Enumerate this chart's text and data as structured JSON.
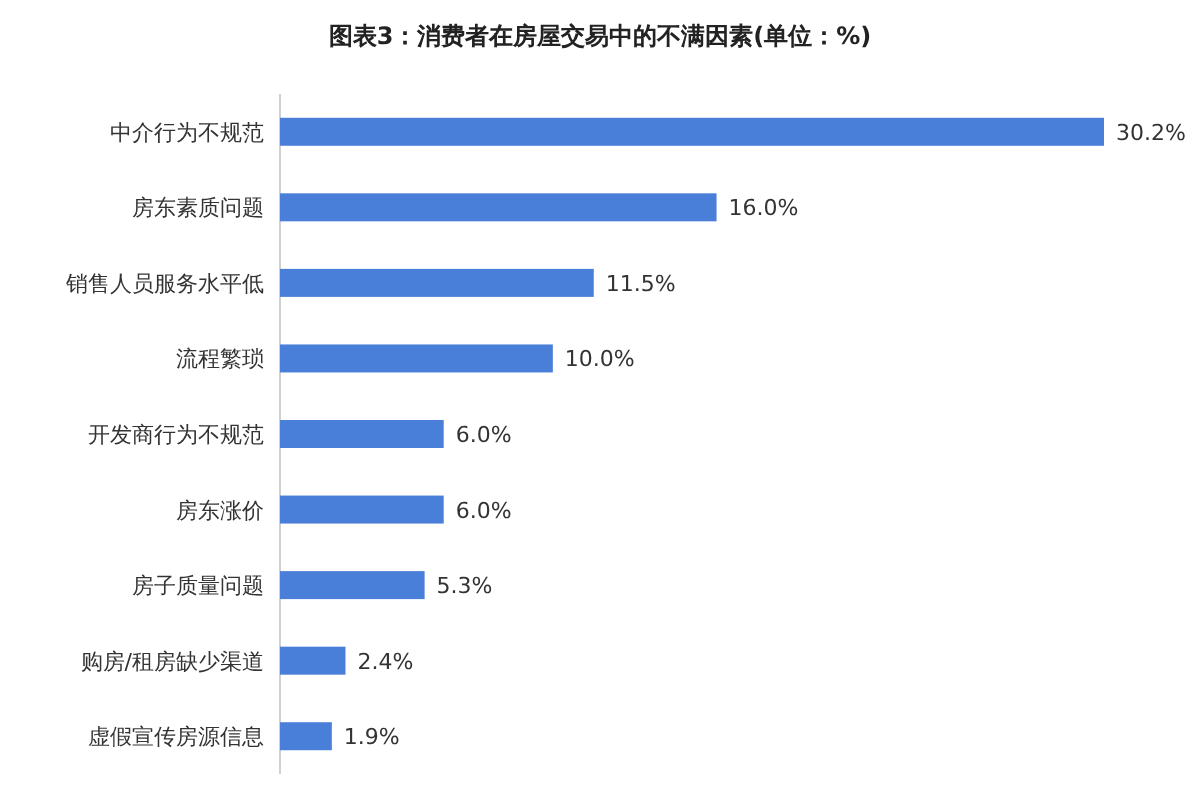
{
  "chart_data": {
    "type": "bar",
    "orientation": "horizontal",
    "title": "图表3：消费者在房屋交易中的不满因素(单位：%)",
    "categories": [
      "中介行为不规范",
      "房东素质问题",
      "销售人员服务水平低",
      "流程繁琐",
      "开发商行为不规范",
      "房东涨价",
      "房子质量问题",
      "购房/租房缺少渠道",
      "虚假宣传房源信息"
    ],
    "values": [
      30.2,
      16.0,
      11.5,
      10.0,
      6.0,
      6.0,
      5.3,
      2.4,
      1.9
    ],
    "value_labels": [
      "30.2%",
      "16.0%",
      "11.5%",
      "10.0%",
      "6.0%",
      "6.0%",
      "5.3%",
      "2.4%",
      "1.9%"
    ],
    "color": "#4a7fd9",
    "xlim": [
      0,
      30.2
    ]
  }
}
